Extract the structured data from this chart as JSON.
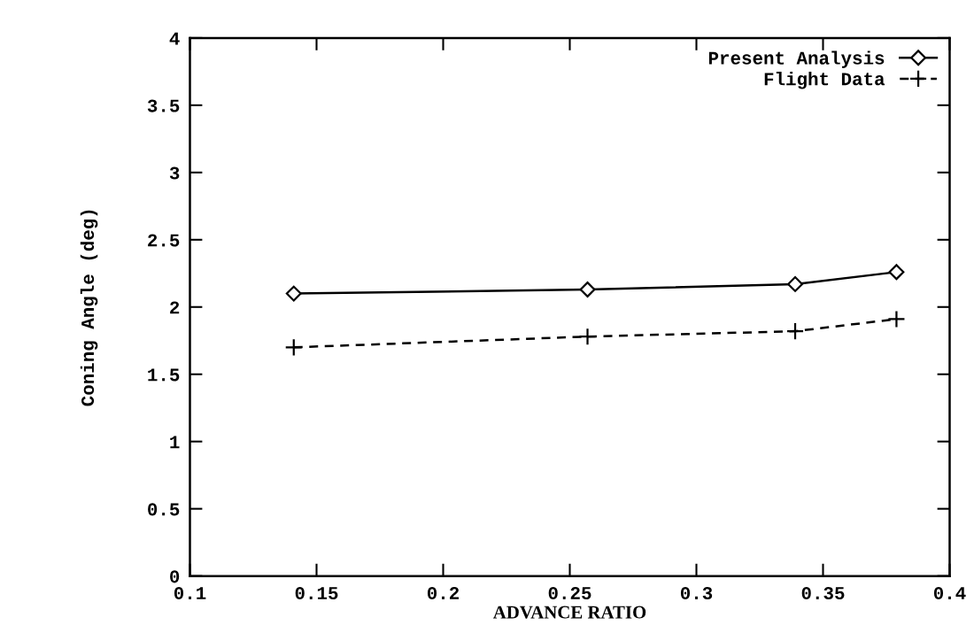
{
  "chart_data": {
    "type": "line",
    "xlabel": "ADVANCE RATIO",
    "ylabel": "Coning Angle (deg)",
    "x": [
      0.141,
      0.257,
      0.339,
      0.379
    ],
    "series": [
      {
        "name": "Present Analysis",
        "color": "#000000",
        "values": [
          2.1,
          2.13,
          2.17,
          2.26
        ],
        "marker": "diamond",
        "line_style": "solid"
      },
      {
        "name": "Flight Data",
        "color": "#000000",
        "values": [
          1.7,
          1.78,
          1.82,
          1.91
        ],
        "marker": "cross",
        "line_style": "dashed"
      }
    ],
    "xlim": [
      0.1,
      0.4
    ],
    "xticks": [
      0.1,
      0.15,
      0.2,
      0.25,
      0.3,
      0.35,
      0.4
    ],
    "ylim": [
      0,
      4
    ],
    "yticks": [
      0,
      0.5,
      1,
      1.5,
      2,
      2.5,
      3,
      3.5,
      4
    ],
    "grid": false,
    "legend": "top right"
  }
}
